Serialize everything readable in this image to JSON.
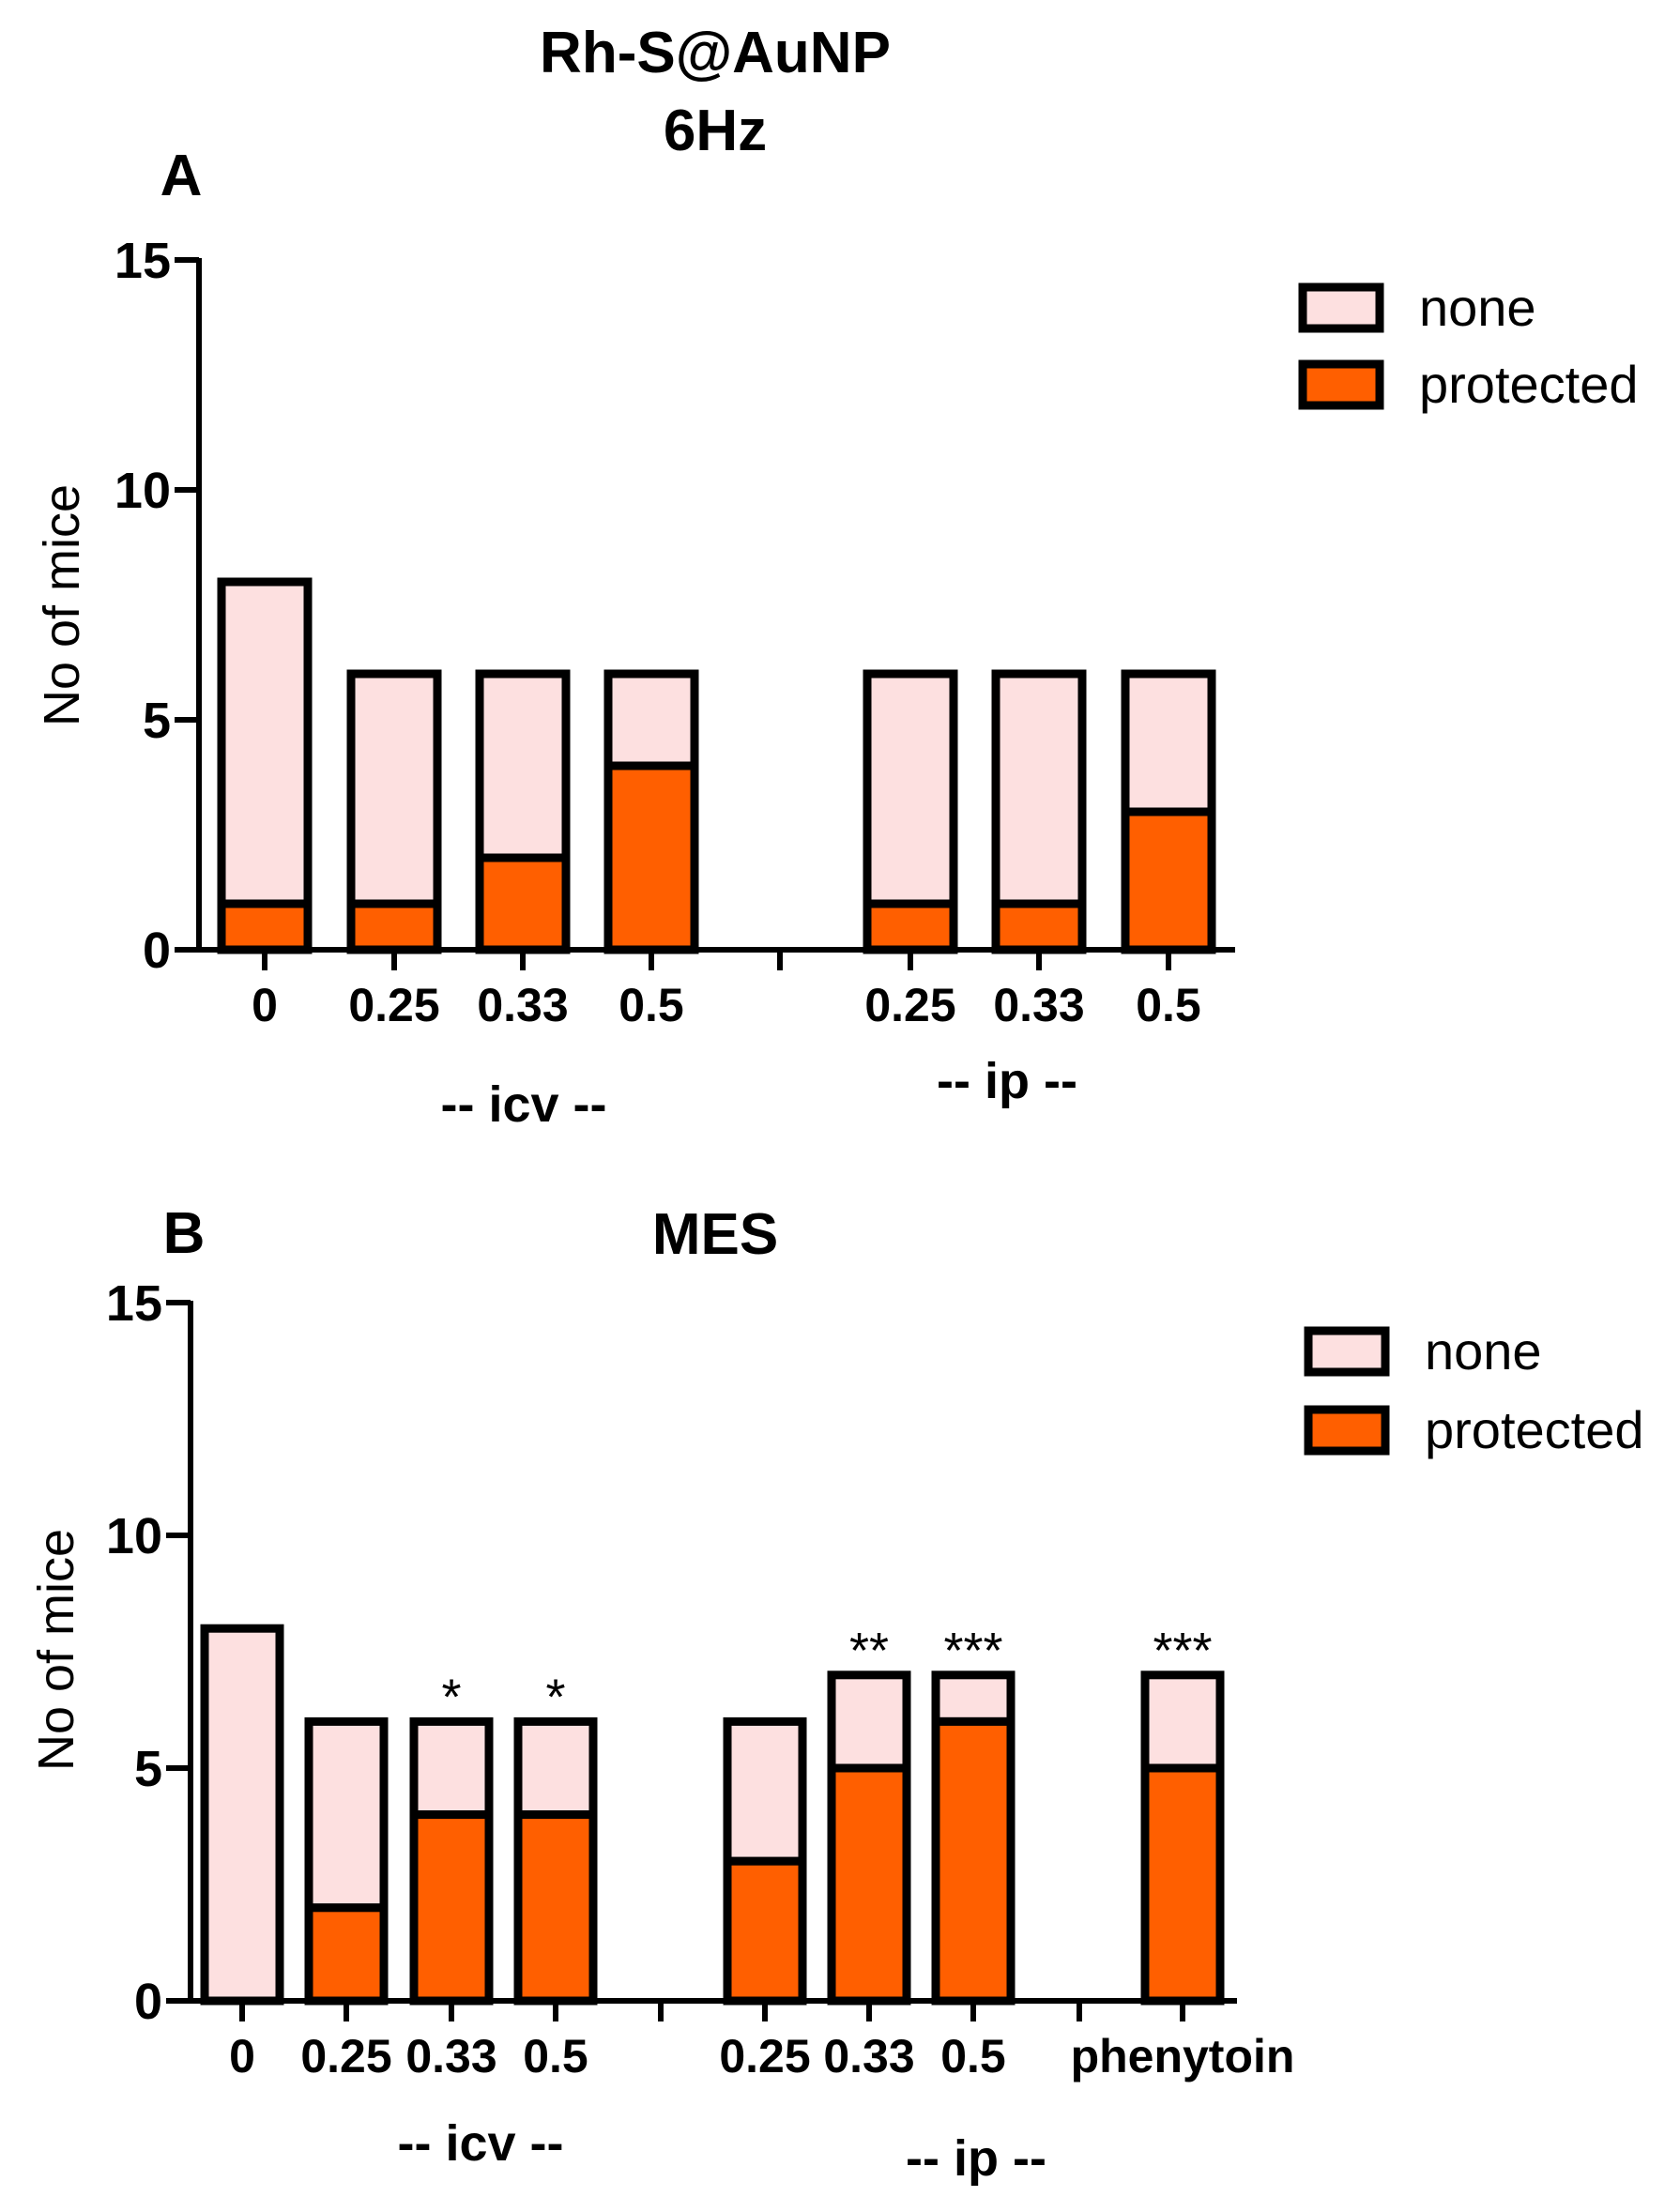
{
  "figure": {
    "title_line1": "Rh-S@AuNP",
    "title_line2": "6Hz"
  },
  "colors": {
    "none": "#FDE0E0",
    "protected": "#FF5F00",
    "stroke": "#000000"
  },
  "chart_data": [
    {
      "type": "bar",
      "stacked": true,
      "panel_label": "A",
      "title": "",
      "ylabel": "No of mice",
      "ylim": [
        0,
        15
      ],
      "yticks": [
        "0",
        "5",
        "10",
        "15"
      ],
      "groups": [
        {
          "label": "-- icv --",
          "categories": [
            "0",
            "0.25",
            "0.33",
            "0.5"
          ]
        },
        {
          "label": "-- ip --",
          "categories": [
            "0.25",
            "0.33",
            "0.5"
          ]
        }
      ],
      "categories": [
        "0",
        "0.25",
        "0.33",
        "0.5",
        "0.25",
        "0.33",
        "0.5"
      ],
      "series": [
        {
          "name": "protected",
          "values": [
            1,
            1,
            2,
            4,
            1,
            1,
            3
          ]
        },
        {
          "name": "none",
          "values": [
            7,
            5,
            4,
            2,
            5,
            5,
            3
          ]
        }
      ],
      "totals": [
        8,
        6,
        6,
        6,
        6,
        6,
        6
      ],
      "annotations": [
        "",
        "",
        "",
        "",
        "",
        "",
        ""
      ],
      "legend": [
        "none",
        "protected"
      ],
      "legend_position": "top-right"
    },
    {
      "type": "bar",
      "stacked": true,
      "panel_label": "B",
      "title": "MES",
      "ylabel": "No of mice",
      "ylim": [
        0,
        15
      ],
      "yticks": [
        "0",
        "5",
        "10",
        "15"
      ],
      "groups": [
        {
          "label": "-- icv --",
          "categories": [
            "0",
            "0.25",
            "0.33",
            "0.5"
          ]
        },
        {
          "label": "-- ip --",
          "categories": [
            "0.25",
            "0.33",
            "0.5"
          ]
        },
        {
          "label": "",
          "categories": [
            "phenytoin"
          ]
        }
      ],
      "categories": [
        "0",
        "0.25",
        "0.33",
        "0.5",
        "0.25",
        "0.33",
        "0.5",
        "phenytoin"
      ],
      "series": [
        {
          "name": "protected",
          "values": [
            0,
            2,
            4,
            4,
            3,
            5,
            6,
            5
          ]
        },
        {
          "name": "none",
          "values": [
            8,
            4,
            2,
            2,
            3,
            2,
            1,
            2
          ]
        }
      ],
      "totals": [
        8,
        6,
        6,
        6,
        6,
        7,
        7,
        7
      ],
      "annotations": [
        "",
        "",
        "*",
        "*",
        "",
        "**",
        "***",
        "***"
      ],
      "legend": [
        "none",
        "protected"
      ],
      "legend_position": "top-right"
    }
  ]
}
